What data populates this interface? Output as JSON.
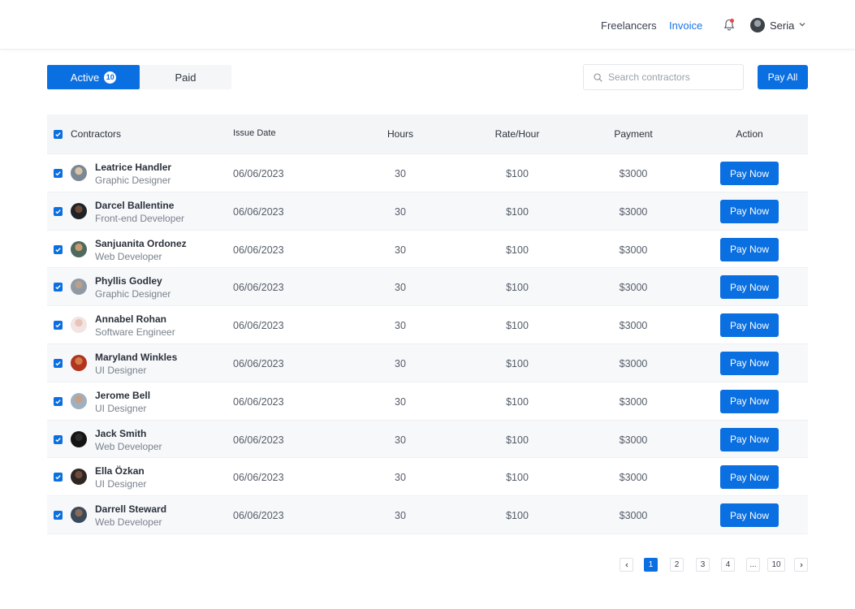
{
  "nav": {
    "links": [
      "Freelancers",
      "Invoice"
    ],
    "active_link": "Invoice",
    "user_name": "Seria"
  },
  "tabs": {
    "active_label": "Active",
    "active_count": "10",
    "paid_label": "Paid"
  },
  "search": {
    "placeholder": "Search contractors"
  },
  "pay_all_label": "Pay All",
  "table": {
    "headers": {
      "contractors": "Contractors",
      "issue_date": "Issue Date",
      "hours": "Hours",
      "rate": "Rate/Hour",
      "payment": "Payment",
      "action": "Action"
    },
    "pay_now_label": "Pay Now",
    "rows": [
      {
        "name": "Leatrice Handler",
        "role": "Graphic Designer",
        "date": "06/06/2023",
        "hours": "30",
        "rate": "$100",
        "payment": "$3000"
      },
      {
        "name": "Darcel Ballentine",
        "role": "Front-end Developer",
        "date": "06/06/2023",
        "hours": "30",
        "rate": "$100",
        "payment": "$3000"
      },
      {
        "name": "Sanjuanita Ordonez",
        "role": "Web Developer",
        "date": "06/06/2023",
        "hours": "30",
        "rate": "$100",
        "payment": "$3000"
      },
      {
        "name": "Phyllis Godley",
        "role": "Graphic Designer",
        "date": "06/06/2023",
        "hours": "30",
        "rate": "$100",
        "payment": "$3000"
      },
      {
        "name": "Annabel Rohan",
        "role": "Software Engineer",
        "date": "06/06/2023",
        "hours": "30",
        "rate": "$100",
        "payment": "$3000"
      },
      {
        "name": "Maryland Winkles",
        "role": "UI Designer",
        "date": "06/06/2023",
        "hours": "30",
        "rate": "$100",
        "payment": "$3000"
      },
      {
        "name": "Jerome Bell",
        "role": "UI Designer",
        "date": "06/06/2023",
        "hours": "30",
        "rate": "$100",
        "payment": "$3000"
      },
      {
        "name": "Jack Smith",
        "role": "Web Developer",
        "date": "06/06/2023",
        "hours": "30",
        "rate": "$100",
        "payment": "$3000"
      },
      {
        "name": "Ella Özkan",
        "role": "UI Designer",
        "date": "06/06/2023",
        "hours": "30",
        "rate": "$100",
        "payment": "$3000"
      },
      {
        "name": "Darrell Steward",
        "role": "Web Developer",
        "date": "06/06/2023",
        "hours": "30",
        "rate": "$100",
        "payment": "$3000"
      }
    ]
  },
  "pagination": {
    "pages": [
      "1",
      "2",
      "3",
      "4",
      "...",
      "10"
    ],
    "current": "1"
  },
  "colors": {
    "primary": "#0a6fe0",
    "notification_dot": "#e5484d"
  },
  "icons": [
    "bell-icon",
    "chevron-down-icon",
    "search-icon",
    "check-icon",
    "chevron-left-icon",
    "chevron-right-icon"
  ]
}
